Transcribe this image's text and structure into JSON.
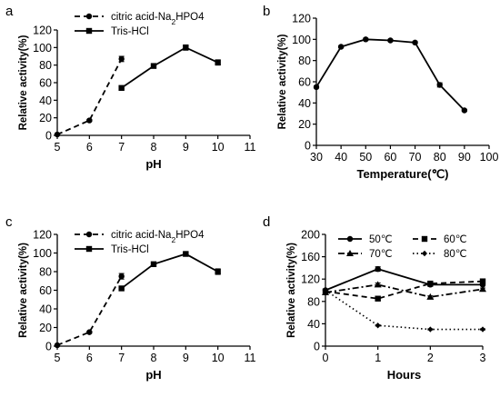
{
  "panel_letters": [
    "a",
    "b",
    "c",
    "d"
  ],
  "chart_data": [
    {
      "id": "a",
      "type": "line",
      "xlabel": "pH",
      "ylabel": "Relative activity(%)",
      "xlim": [
        5,
        11
      ],
      "ylim": [
        0,
        120
      ],
      "xticks": [
        5,
        6,
        7,
        8,
        9,
        10,
        11
      ],
      "yticks": [
        0,
        20,
        40,
        60,
        80,
        100,
        120
      ],
      "legend": "top-left",
      "series": [
        {
          "name": "citric acid-Na2HPO4",
          "name_parts": [
            "citric acid-Na",
            "2",
            "HPO4"
          ],
          "style": "dashed",
          "marker": "circle",
          "x": [
            5,
            6,
            7
          ],
          "y": [
            1,
            17,
            87
          ],
          "err": [
            0,
            1,
            3
          ]
        },
        {
          "name": "Tris-HCl",
          "name_parts": [
            "Tris-HCl",
            "",
            ""
          ],
          "style": "solid",
          "marker": "square",
          "x": [
            7,
            8,
            9,
            10
          ],
          "y": [
            54,
            79,
            100,
            83
          ],
          "err": [
            1,
            1,
            3,
            3
          ]
        }
      ]
    },
    {
      "id": "b",
      "type": "line",
      "xlabel": "Temperature(℃)",
      "ylabel": "Relative activity(%)",
      "xlim": [
        30,
        100
      ],
      "ylim": [
        0,
        120
      ],
      "xticks": [
        30,
        40,
        50,
        60,
        70,
        80,
        90,
        100
      ],
      "yticks": [
        0,
        20,
        40,
        60,
        80,
        100,
        120
      ],
      "series": [
        {
          "name": "",
          "name_parts": [
            "",
            "",
            ""
          ],
          "style": "solid",
          "marker": "circle",
          "x": [
            30,
            40,
            50,
            60,
            70,
            80,
            90
          ],
          "y": [
            55,
            93,
            100,
            99,
            97,
            57,
            33
          ],
          "err": [
            1,
            1,
            1,
            1,
            1,
            2,
            1
          ]
        }
      ]
    },
    {
      "id": "c",
      "type": "line",
      "xlabel": "pH",
      "ylabel": "Relative activity(%)",
      "xlim": [
        5,
        11
      ],
      "ylim": [
        0,
        120
      ],
      "xticks": [
        5,
        6,
        7,
        8,
        9,
        10,
        11
      ],
      "yticks": [
        0,
        20,
        40,
        60,
        80,
        100,
        120
      ],
      "legend": "top-left",
      "series": [
        {
          "name": "citric acid-Na2HPO4",
          "name_parts": [
            "citric acid-Na",
            "2",
            "HPO4"
          ],
          "style": "dashed",
          "marker": "circle",
          "x": [
            5,
            6,
            7
          ],
          "y": [
            1,
            15,
            75
          ],
          "err": [
            0,
            1,
            3
          ]
        },
        {
          "name": "Tris-HCl",
          "name_parts": [
            "Tris-HCl",
            "",
            ""
          ],
          "style": "solid",
          "marker": "square",
          "x": [
            7,
            8,
            9,
            10
          ],
          "y": [
            62,
            88,
            99,
            80
          ],
          "err": [
            1,
            2,
            1,
            3
          ]
        }
      ]
    },
    {
      "id": "d",
      "type": "line",
      "xlabel": "Hours",
      "ylabel": "Relative activity(%)",
      "xlim": [
        0,
        3
      ],
      "ylim": [
        0,
        200
      ],
      "xticks": [
        0,
        1,
        2,
        3
      ],
      "yticks": [
        0,
        40,
        80,
        120,
        160,
        200
      ],
      "legend": "top",
      "series": [
        {
          "name": "50℃",
          "name_parts": [
            "50℃",
            "",
            ""
          ],
          "style": "solid",
          "marker": "circle",
          "x": [
            0,
            1,
            2,
            3
          ],
          "y": [
            100,
            138,
            110,
            110
          ],
          "err": [
            2,
            4,
            3,
            2
          ]
        },
        {
          "name": "60℃",
          "name_parts": [
            "60℃",
            "",
            ""
          ],
          "style": "dashed",
          "marker": "square",
          "x": [
            0,
            1,
            2,
            3
          ],
          "y": [
            98,
            85,
            112,
            116
          ],
          "err": [
            2,
            3,
            2,
            2
          ]
        },
        {
          "name": "70℃",
          "name_parts": [
            "70℃",
            "",
            ""
          ],
          "style": "dashdot",
          "marker": "triangle",
          "x": [
            0,
            1,
            2,
            3
          ],
          "y": [
            96,
            110,
            88,
            102
          ],
          "err": [
            2,
            3,
            2,
            2
          ]
        },
        {
          "name": "80℃",
          "name_parts": [
            "80℃",
            "",
            ""
          ],
          "style": "dotted",
          "marker": "diamond",
          "x": [
            0,
            1,
            2,
            3
          ],
          "y": [
            100,
            37,
            30,
            30
          ],
          "err": [
            2,
            1,
            1,
            1
          ]
        }
      ]
    }
  ]
}
